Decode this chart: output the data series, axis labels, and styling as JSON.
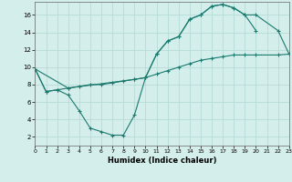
{
  "xlabel": "Humidex (Indice chaleur)",
  "bg_color": "#d4eeec",
  "grid_color": "#b2d8d4",
  "line_color": "#1a7a6e",
  "xlim": [
    0,
    23
  ],
  "ylim": [
    1,
    17.5
  ],
  "xticks": [
    0,
    1,
    2,
    3,
    4,
    5,
    6,
    7,
    8,
    9,
    10,
    11,
    12,
    13,
    14,
    15,
    16,
    17,
    18,
    19,
    20,
    21,
    22,
    23
  ],
  "yticks": [
    2,
    4,
    6,
    8,
    10,
    12,
    14,
    16
  ],
  "line1_x": [
    0,
    1,
    2,
    3,
    4,
    5,
    6,
    7,
    8,
    9,
    10,
    11,
    12,
    13,
    14,
    15,
    16,
    17,
    18,
    19,
    20
  ],
  "line1_y": [
    9.8,
    7.2,
    7.4,
    6.8,
    5.0,
    3.0,
    2.6,
    2.2,
    2.2,
    4.5,
    8.8,
    11.5,
    13.0,
    13.5,
    15.5,
    16.0,
    17.0,
    17.2,
    16.8,
    16.0,
    14.2
  ],
  "line2_x": [
    0,
    1,
    2,
    3,
    4,
    5,
    6,
    7,
    8,
    9,
    10,
    11,
    12,
    13,
    14,
    15,
    16,
    17,
    18,
    19,
    20,
    22,
    23
  ],
  "line2_y": [
    9.8,
    7.2,
    7.4,
    7.6,
    7.8,
    8.0,
    8.0,
    8.2,
    8.4,
    8.6,
    8.8,
    9.2,
    9.6,
    10.0,
    10.4,
    10.8,
    11.0,
    11.2,
    11.4,
    11.4,
    11.4,
    11.4,
    11.5
  ],
  "line3_x": [
    0,
    3,
    9,
    10,
    11,
    12,
    13,
    14,
    15,
    16,
    17,
    18,
    19,
    20,
    22,
    23
  ],
  "line3_y": [
    9.8,
    7.6,
    8.6,
    8.8,
    11.5,
    13.0,
    13.5,
    15.5,
    16.0,
    17.0,
    17.2,
    16.8,
    16.0,
    16.0,
    14.2,
    11.5
  ]
}
